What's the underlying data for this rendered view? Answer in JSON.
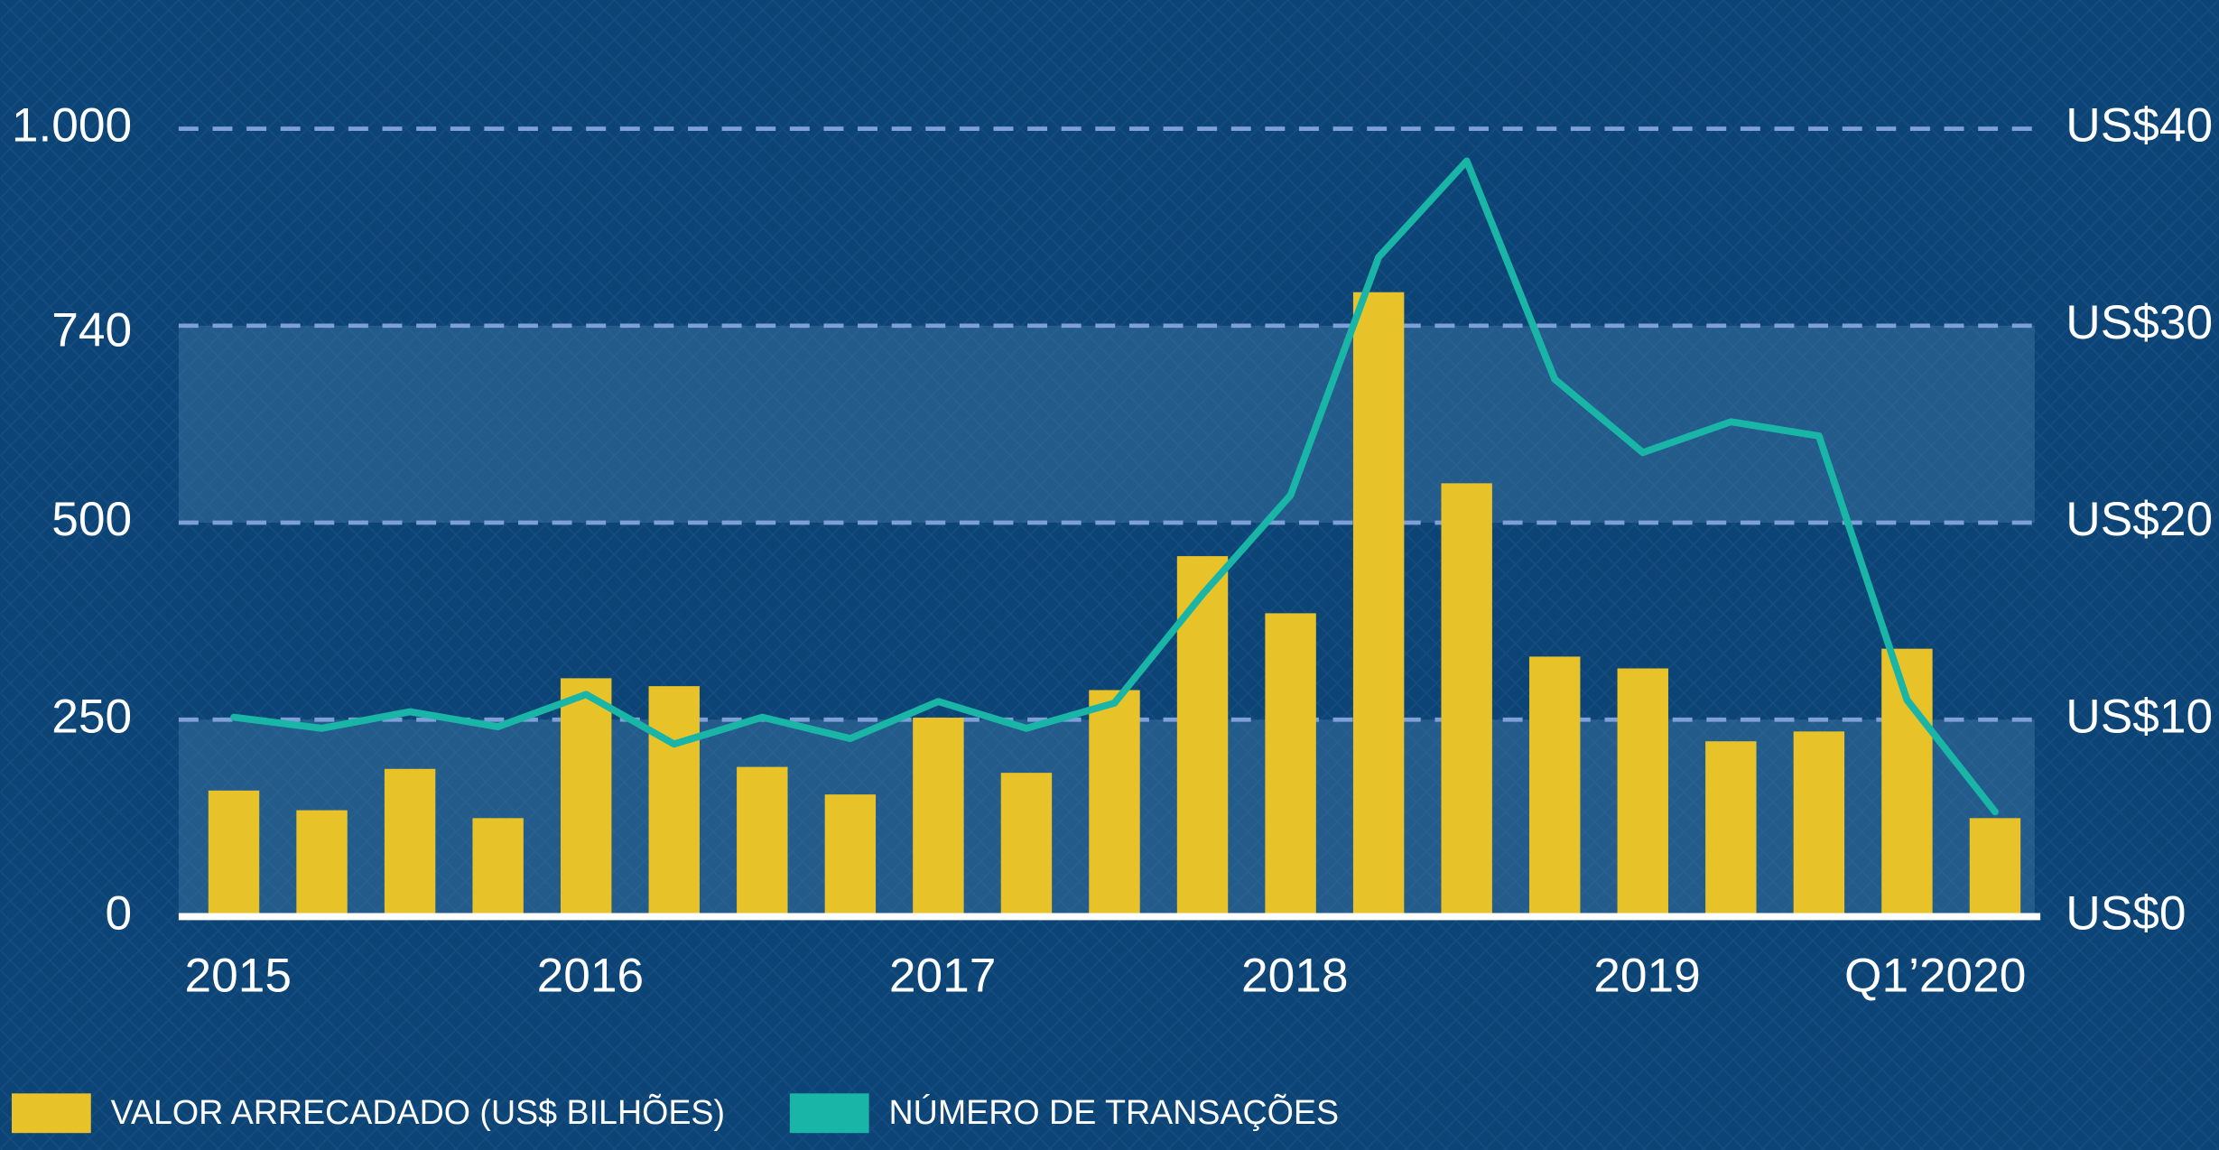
{
  "chart_data": {
    "type": "bar",
    "categories": [
      "2015",
      null,
      null,
      null,
      "2016",
      null,
      null,
      null,
      "2017",
      null,
      null,
      null,
      "2018",
      null,
      null,
      null,
      "2019",
      null,
      null,
      "Q1’2020",
      null
    ],
    "series": [
      {
        "name": "VALOR ARRECADADO (US$ BILHÕES)",
        "color": "#e8c229",
        "type": "bar",
        "axis": "y2",
        "values": [
          6.4,
          5.4,
          7.5,
          5.0,
          12.1,
          11.7,
          7.6,
          6.2,
          10.1,
          7.3,
          11.5,
          18.3,
          15.4,
          31.7,
          22.0,
          13.2,
          12.6,
          8.9,
          9.4,
          13.6,
          5.0
        ]
      },
      {
        "name": "NÚMERO DE TRANSAÇÕES",
        "color": "#19b5a7",
        "type": "line",
        "values": [
          253,
          239,
          260,
          241,
          282,
          219,
          253,
          226,
          273,
          239,
          271,
          409,
          535,
          837,
          959,
          682,
          589,
          628,
          610,
          275,
          133
        ]
      }
    ],
    "ylim": [
      0,
      1000
    ],
    "yticks": [
      0,
      250,
      500,
      740,
      {
        "value": 1000,
        "label": "1.000"
      }
    ],
    "y2lim": [
      0,
      40
    ],
    "y2ticks": [
      {
        "value": 0,
        "label": "US$0"
      },
      {
        "value": 10,
        "label": "US$10"
      },
      {
        "value": 20,
        "label": "US$20"
      },
      {
        "value": 30,
        "label": "US$30"
      },
      {
        "value": 40,
        "label": "US$40"
      }
    ],
    "grid": true
  }
}
